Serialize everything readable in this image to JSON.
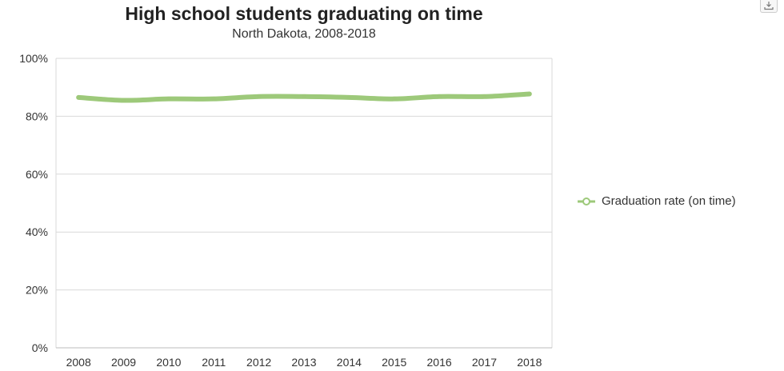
{
  "chart_data": {
    "type": "line",
    "title": "High school students graduating on time",
    "subtitle": "North Dakota, 2008-2018",
    "categories": [
      "2008",
      "2009",
      "2010",
      "2011",
      "2012",
      "2013",
      "2014",
      "2015",
      "2016",
      "2017",
      "2018"
    ],
    "series": [
      {
        "name": "Graduation rate (on time)",
        "color": "#9dc97a",
        "values": [
          86.5,
          85.5,
          86,
          86,
          86.8,
          86.8,
          86.5,
          86,
          86.8,
          86.8,
          87.7
        ]
      }
    ],
    "ylim": [
      0,
      100
    ],
    "yticks": [
      0,
      20,
      40,
      60,
      80,
      100
    ],
    "ytick_labels": [
      "0%",
      "20%",
      "40%",
      "60%",
      "80%",
      "100%"
    ],
    "xlabel": "",
    "ylabel": "",
    "grid": "horizontal",
    "legend_position": "right"
  },
  "toolbar": {
    "export_icon": "download-icon"
  }
}
